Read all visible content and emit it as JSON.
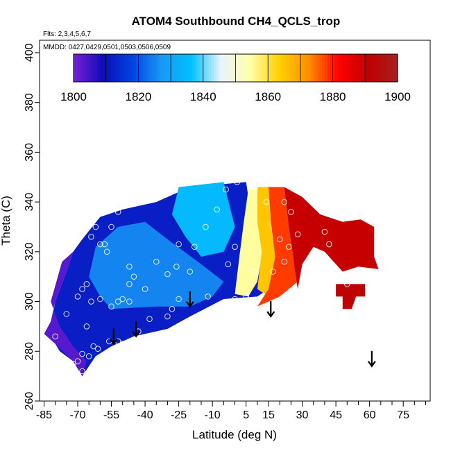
{
  "chart_data": {
    "type": "heatmap",
    "title": "ATOM4 Southbound CH4_QCLS_trop",
    "annotations": {
      "flights": "Flts: 2,3,4,5,6,7",
      "dates": "MMDD: 0427,0429,0501,0503,0506,0509"
    },
    "xlabel": "Latitude (deg N)",
    "ylabel": "Theta (C)",
    "xlim": [
      -87,
      87
    ],
    "ylim": [
      260,
      405
    ],
    "xticks": [
      -85,
      -70,
      -55,
      -40,
      -25,
      -10,
      5,
      15,
      30,
      45,
      60,
      75
    ],
    "yticks": [
      260,
      280,
      300,
      320,
      340,
      360,
      380,
      400
    ],
    "colorbar": {
      "range": [
        1800,
        1900
      ],
      "ticks": [
        1800,
        1820,
        1840,
        1860,
        1880,
        1900
      ],
      "colors": [
        "#7a1fd8",
        "#0d0db8",
        "#0044e0",
        "#1a9af5",
        "#00bfff",
        "#e8f4ff",
        "#ffffa8",
        "#ffd000",
        "#ff8c00",
        "#ff0000",
        "#c00000",
        "#a82020"
      ]
    },
    "field_polygons": [
      {
        "name": "low",
        "value": 1812,
        "points": [
          [
            -80,
            283
          ],
          [
            -78,
            280
          ],
          [
            -72,
            276
          ],
          [
            -68,
            270
          ],
          [
            -62,
            278
          ],
          [
            -55,
            282
          ],
          [
            -45,
            286
          ],
          [
            -30,
            289
          ],
          [
            -20,
            294
          ],
          [
            -5,
            301
          ],
          [
            10,
            302
          ],
          [
            15,
            305
          ],
          [
            15,
            315
          ],
          [
            12,
            320
          ],
          [
            8,
            330
          ],
          [
            5,
            348
          ],
          [
            -20,
            346
          ],
          [
            -35,
            340
          ],
          [
            -50,
            337
          ],
          [
            -60,
            334
          ],
          [
            -68,
            325
          ],
          [
            -72,
            320
          ],
          [
            -75,
            312
          ],
          [
            -80,
            300
          ],
          [
            -82,
            290
          ]
        ]
      },
      {
        "name": "violet",
        "value": 1803,
        "points": [
          [
            -85,
            287
          ],
          [
            -80,
            283
          ],
          [
            -72,
            276
          ],
          [
            -68,
            270
          ],
          [
            -66,
            276
          ],
          [
            -72,
            282
          ],
          [
            -78,
            290
          ],
          [
            -82,
            300
          ],
          [
            -77,
            316
          ],
          [
            -72,
            320
          ],
          [
            -75,
            312
          ],
          [
            -80,
            300
          ],
          [
            -82,
            292
          ]
        ]
      },
      {
        "name": "mid-blue",
        "value": 1825,
        "points": [
          [
            -55,
            297
          ],
          [
            -35,
            298
          ],
          [
            -20,
            298
          ],
          [
            -10,
            302
          ],
          [
            -5,
            308
          ],
          [
            -15,
            315
          ],
          [
            -30,
            325
          ],
          [
            -40,
            332
          ],
          [
            -52,
            330
          ],
          [
            -62,
            322
          ],
          [
            -65,
            310
          ],
          [
            -60,
            302
          ]
        ]
      },
      {
        "name": "light-blue",
        "value": 1835,
        "points": [
          [
            -25,
            346
          ],
          [
            -5,
            348
          ],
          [
            0,
            330
          ],
          [
            -5,
            320
          ],
          [
            -15,
            318
          ],
          [
            -22,
            326
          ],
          [
            -28,
            335
          ]
        ]
      },
      {
        "name": "transition",
        "value": 1855,
        "points": [
          [
            6,
            345
          ],
          [
            10,
            345
          ],
          [
            12,
            330
          ],
          [
            12,
            318
          ],
          [
            10,
            308
          ],
          [
            6,
            302
          ],
          [
            0,
            303
          ],
          [
            2,
            318
          ],
          [
            4,
            332
          ]
        ]
      },
      {
        "name": "yellow",
        "value": 1865,
        "points": [
          [
            10,
            346
          ],
          [
            15,
            346
          ],
          [
            16,
            330
          ],
          [
            18,
            320
          ],
          [
            20,
            310
          ],
          [
            15,
            302
          ],
          [
            10,
            305
          ],
          [
            12,
            320
          ],
          [
            10,
            332
          ]
        ]
      },
      {
        "name": "orange",
        "value": 1878,
        "points": [
          [
            15,
            346
          ],
          [
            22,
            346
          ],
          [
            24,
            330
          ],
          [
            26,
            318
          ],
          [
            28,
            308
          ],
          [
            20,
            302
          ],
          [
            10,
            298
          ],
          [
            15,
            305
          ],
          [
            18,
            318
          ],
          [
            16,
            332
          ]
        ]
      },
      {
        "name": "red",
        "value": 1890,
        "points": [
          [
            22,
            346
          ],
          [
            30,
            342
          ],
          [
            38,
            335
          ],
          [
            48,
            332
          ],
          [
            56,
            333
          ],
          [
            62,
            330
          ],
          [
            62,
            318
          ],
          [
            64,
            313
          ],
          [
            55,
            314
          ],
          [
            48,
            312
          ],
          [
            40,
            320
          ],
          [
            35,
            322
          ],
          [
            30,
            315
          ],
          [
            28,
            305
          ],
          [
            26,
            318
          ],
          [
            24,
            330
          ]
        ]
      },
      {
        "name": "red-patch",
        "value": 1892,
        "points": [
          [
            45,
            307
          ],
          [
            58,
            307
          ],
          [
            58,
            302
          ],
          [
            54,
            302
          ],
          [
            52,
            297
          ],
          [
            48,
            297
          ],
          [
            48,
            302
          ],
          [
            45,
            302
          ]
        ]
      }
    ],
    "sample_points": [
      [
        -80,
        286
      ],
      [
        -75,
        295
      ],
      [
        -70,
        302
      ],
      [
        -68,
        305
      ],
      [
        -66,
        307
      ],
      [
        -64,
        300
      ],
      [
        -60,
        301
      ],
      [
        -55,
        298
      ],
      [
        -52,
        300
      ],
      [
        -50,
        301
      ],
      [
        -47,
        300
      ],
      [
        -66,
        290
      ],
      [
        -68,
        279
      ],
      [
        -70,
        276
      ],
      [
        -72,
        275
      ],
      [
        -63,
        282
      ],
      [
        -61,
        281
      ],
      [
        -52,
        284
      ],
      [
        -50,
        283
      ],
      [
        -43,
        288
      ],
      [
        -38,
        293
      ],
      [
        -30,
        294
      ],
      [
        -28,
        297
      ],
      [
        -25,
        301
      ],
      [
        -47,
        307
      ],
      [
        -45,
        310
      ],
      [
        -47,
        314
      ],
      [
        -40,
        305
      ],
      [
        -35,
        316
      ],
      [
        -30,
        311
      ],
      [
        -26,
        314
      ],
      [
        -20,
        312
      ],
      [
        -25,
        323
      ],
      [
        -18,
        322
      ],
      [
        -13,
        330
      ],
      [
        -8,
        337
      ],
      [
        -4,
        345
      ],
      [
        1,
        348
      ],
      [
        9,
        346
      ],
      [
        14,
        340
      ],
      [
        22,
        340
      ],
      [
        25,
        336
      ],
      [
        28,
        327
      ],
      [
        20,
        325
      ],
      [
        24,
        322
      ],
      [
        -55,
        330
      ],
      [
        -58,
        323
      ],
      [
        -60,
        323
      ],
      [
        -64,
        326
      ],
      [
        -57,
        320
      ],
      [
        -62,
        330
      ],
      [
        -52,
        336
      ],
      [
        0,
        322
      ],
      [
        -3,
        315
      ],
      [
        9,
        312
      ],
      [
        17,
        312
      ],
      [
        22,
        316
      ],
      [
        -12,
        302
      ],
      [
        0,
        301
      ],
      [
        5,
        302
      ],
      [
        40,
        328
      ],
      [
        42,
        323
      ],
      [
        50,
        307
      ],
      [
        59,
        333
      ],
      [
        -65,
        278
      ],
      [
        -68,
        272
      ],
      [
        -73,
        275
      ],
      [
        -56,
        284
      ]
    ],
    "arrows": [
      [
        -54,
        283
      ],
      [
        -44,
        286
      ],
      [
        -20,
        298
      ],
      [
        16,
        294
      ],
      [
        61,
        274
      ]
    ]
  }
}
